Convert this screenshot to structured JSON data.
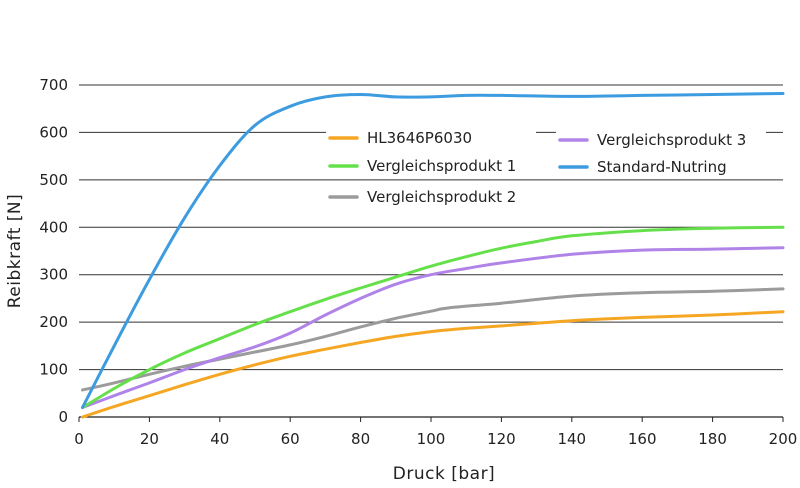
{
  "chart_data": {
    "type": "line",
    "title": "",
    "xlabel": "Druck [bar]",
    "ylabel": "Reibkraft [N]",
    "xlim": [
      0,
      200
    ],
    "ylim": [
      0,
      700
    ],
    "x_ticks": [
      0,
      20,
      40,
      60,
      80,
      100,
      120,
      140,
      160,
      180,
      200
    ],
    "y_ticks": [
      0,
      100,
      200,
      300,
      400,
      500,
      600,
      700
    ],
    "grid": "horizontal",
    "series": [
      {
        "name": "HL3646P6030",
        "color": "#f5a623",
        "x": [
          1,
          10,
          20,
          30,
          40,
          50,
          60,
          70,
          80,
          90,
          100,
          110,
          120,
          140,
          160,
          180,
          200
        ],
        "y": [
          0,
          22,
          45,
          68,
          90,
          110,
          128,
          143,
          157,
          170,
          180,
          187,
          192,
          203,
          210,
          215,
          222
        ]
      },
      {
        "name": "Vergleichsprodukt 1",
        "color": "#66e04a",
        "x": [
          1,
          10,
          20,
          30,
          40,
          50,
          60,
          70,
          80,
          90,
          100,
          110,
          120,
          130,
          140,
          160,
          180,
          200
        ],
        "y": [
          20,
          60,
          100,
          135,
          165,
          195,
          222,
          248,
          272,
          295,
          318,
          338,
          356,
          370,
          382,
          393,
          398,
          400
        ]
      },
      {
        "name": "Vergleichsprodukt 2",
        "color": "#9b9b9b",
        "x": [
          1,
          10,
          20,
          30,
          40,
          50,
          60,
          70,
          80,
          90,
          100,
          105,
          120,
          140,
          160,
          180,
          200
        ],
        "y": [
          57,
          72,
          90,
          107,
          122,
          137,
          152,
          170,
          190,
          208,
          223,
          230,
          240,
          255,
          262,
          265,
          270
        ]
      },
      {
        "name": "Vergleichsprodukt 3",
        "color": "#b083e8",
        "x": [
          1,
          10,
          20,
          30,
          40,
          50,
          60,
          70,
          80,
          90,
          100,
          110,
          120,
          140,
          160,
          180,
          200
        ],
        "y": [
          20,
          45,
          72,
          100,
          125,
          148,
          177,
          215,
          250,
          280,
          300,
          313,
          325,
          343,
          352,
          354,
          357
        ]
      },
      {
        "name": "Standard-Nutring",
        "color": "#3d9be0",
        "x": [
          1,
          10,
          20,
          30,
          40,
          50,
          60,
          70,
          80,
          90,
          100,
          110,
          120,
          140,
          160,
          180,
          200
        ],
        "y": [
          20,
          150,
          290,
          420,
          530,
          615,
          655,
          675,
          680,
          675,
          675,
          678,
          678,
          676,
          678,
          680,
          682
        ]
      }
    ],
    "legend": {
      "position": "upper-center",
      "order": [
        "HL3646P6030",
        "Vergleichsprodukt 1",
        "Vergleichsprodukt 2",
        "Vergleichsprodukt 3",
        "Standard-Nutring"
      ]
    }
  }
}
